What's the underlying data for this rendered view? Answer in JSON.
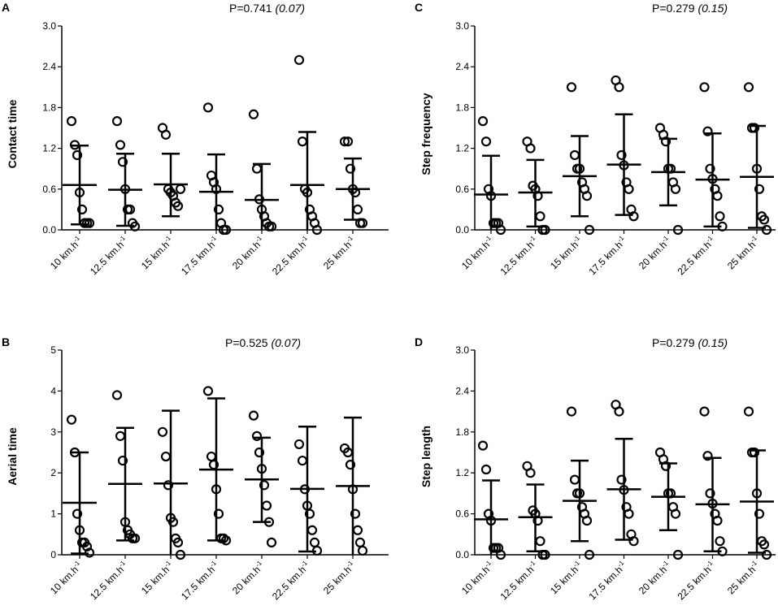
{
  "chart_data": [
    {
      "panel": "A",
      "type": "scatter",
      "title": "P=0.741",
      "title_effect": "(0.07)",
      "xlabel": "",
      "ylabel": "Contact time",
      "ylim": [
        0,
        3.0
      ],
      "yticks": [
        "0.0",
        "0.6",
        "1.2",
        "1.8",
        "2.4",
        "3.0"
      ],
      "categories": [
        "10 km.h",
        "12.5 km.h",
        "15 km.h",
        "17.5 km.h",
        "20 km.h",
        "22.5 km.h",
        "25 km.h"
      ],
      "unit_exponent": "-1",
      "mean": [
        0.66,
        0.59,
        0.67,
        0.56,
        0.44,
        0.66,
        0.6
      ],
      "sd_upper": [
        1.24,
        1.12,
        1.12,
        1.11,
        0.97,
        1.44,
        1.05
      ],
      "sd_lower": [
        0.08,
        0.06,
        0.2,
        0.0,
        0.0,
        0.0,
        0.15
      ],
      "points": [
        [
          1.6,
          1.25,
          1.1,
          0.55,
          0.3,
          0.1,
          0.1,
          0.1
        ],
        [
          1.6,
          1.25,
          1.0,
          0.6,
          0.3,
          0.3,
          0.1,
          0.05
        ],
        [
          1.5,
          1.4,
          0.6,
          0.55,
          0.5,
          0.4,
          0.35,
          0.6
        ],
        [
          1.8,
          0.8,
          0.7,
          0.6,
          0.3,
          0.1,
          0.0,
          0.0
        ],
        [
          1.7,
          0.9,
          0.45,
          0.3,
          0.2,
          0.1,
          0.05,
          0.05
        ],
        [
          2.5,
          1.3,
          0.6,
          0.55,
          0.3,
          0.2,
          0.1,
          0.0
        ],
        [
          1.3,
          1.3,
          0.9,
          0.6,
          0.55,
          0.3,
          0.1,
          0.1
        ]
      ]
    },
    {
      "panel": "C",
      "type": "scatter",
      "title": "P=0.279",
      "title_effect": "(0.15)",
      "xlabel": "",
      "ylabel": "Step frequency",
      "ylim": [
        0,
        3.0
      ],
      "yticks": [
        "0.0",
        "0.6",
        "1.2",
        "1.8",
        "2.4",
        "3.0"
      ],
      "categories": [
        "10 km.h",
        "12.5 km.h",
        "15 km.h",
        "17.5 km.h",
        "20 km.h",
        "22.5 km.h",
        "25 km.h"
      ],
      "unit_exponent": "-1",
      "mean": [
        0.52,
        0.55,
        0.79,
        0.96,
        0.85,
        0.74,
        0.78
      ],
      "sd_upper": [
        1.09,
        1.03,
        1.38,
        1.7,
        1.34,
        1.42,
        1.53
      ],
      "sd_lower": [
        0.0,
        0.05,
        0.2,
        0.22,
        0.36,
        0.05,
        0.03
      ],
      "points": [
        [
          1.6,
          1.3,
          0.6,
          0.5,
          0.1,
          0.1,
          0.1,
          0.0
        ],
        [
          1.3,
          1.2,
          0.65,
          0.6,
          0.5,
          0.2,
          0.0,
          0.0
        ],
        [
          2.1,
          1.1,
          0.9,
          0.9,
          0.7,
          0.6,
          0.5,
          0.0
        ],
        [
          2.2,
          2.1,
          1.1,
          0.95,
          0.7,
          0.6,
          0.3,
          0.2
        ],
        [
          1.5,
          1.4,
          1.3,
          0.9,
          0.9,
          0.7,
          0.6,
          0.0
        ],
        [
          2.1,
          1.45,
          0.9,
          0.75,
          0.6,
          0.5,
          0.2,
          0.05
        ],
        [
          2.1,
          1.5,
          1.5,
          0.9,
          0.6,
          0.2,
          0.15,
          0.0
        ]
      ]
    },
    {
      "panel": "B",
      "type": "scatter",
      "title": "P=0.525",
      "title_effect": "(0.07)",
      "xlabel": "",
      "ylabel": "Aerial time",
      "ylim": [
        0,
        5
      ],
      "yticks": [
        "0",
        "1",
        "2",
        "3",
        "4",
        "5"
      ],
      "categories": [
        "10 km.h",
        "12.5 km.h",
        "15 km.h",
        "17.5 km.h",
        "20 km.h",
        "22.5 km.h",
        "25 km.h"
      ],
      "unit_exponent": "-1",
      "mean": [
        1.27,
        1.73,
        1.74,
        2.08,
        1.84,
        1.61,
        1.68
      ],
      "sd_upper": [
        2.5,
        3.1,
        3.52,
        3.82,
        2.86,
        3.13,
        3.35
      ],
      "sd_lower": [
        0.03,
        0.35,
        0.0,
        0.35,
        0.8,
        0.08,
        0.0
      ],
      "points": [
        [
          3.3,
          2.5,
          1.0,
          0.6,
          0.3,
          0.3,
          0.2,
          0.05
        ],
        [
          3.9,
          2.9,
          2.3,
          0.8,
          0.6,
          0.5,
          0.4,
          0.4
        ],
        [
          3.0,
          2.4,
          1.7,
          0.9,
          0.8,
          0.4,
          0.3,
          0.0
        ],
        [
          4.0,
          2.4,
          2.2,
          1.6,
          1.0,
          0.4,
          0.4,
          0.35
        ],
        [
          3.4,
          2.9,
          2.5,
          2.1,
          1.7,
          1.2,
          0.8,
          0.3
        ],
        [
          2.7,
          2.3,
          1.6,
          1.2,
          1.0,
          0.6,
          0.3,
          0.1
        ],
        [
          2.6,
          2.5,
          2.2,
          1.6,
          1.0,
          0.6,
          0.3,
          0.1
        ]
      ]
    },
    {
      "panel": "D",
      "type": "scatter",
      "title": "P=0.279",
      "title_effect": "(0.15)",
      "xlabel": "",
      "ylabel": "Step length",
      "ylim": [
        0,
        3.0
      ],
      "yticks": [
        "0.0",
        "0.6",
        "1.2",
        "1.8",
        "2.4",
        "3.0"
      ],
      "categories": [
        "10 km.h",
        "12.5 km.h",
        "15 km.h",
        "17.5 km.h",
        "20 km.h",
        "22.5 km.h",
        "25 km.h"
      ],
      "unit_exponent": "-1",
      "mean": [
        0.52,
        0.55,
        0.79,
        0.96,
        0.85,
        0.74,
        0.78
      ],
      "sd_upper": [
        1.09,
        1.03,
        1.38,
        1.7,
        1.34,
        1.42,
        1.53
      ],
      "sd_lower": [
        0.0,
        0.05,
        0.2,
        0.22,
        0.36,
        0.05,
        0.03
      ],
      "points": [
        [
          1.6,
          1.25,
          0.6,
          0.5,
          0.1,
          0.1,
          0.1,
          0.0
        ],
        [
          1.3,
          1.2,
          0.65,
          0.6,
          0.5,
          0.2,
          0.0,
          0.0
        ],
        [
          2.1,
          1.1,
          0.9,
          0.9,
          0.7,
          0.6,
          0.5,
          0.0
        ],
        [
          2.2,
          2.1,
          1.1,
          0.95,
          0.7,
          0.6,
          0.3,
          0.2
        ],
        [
          1.5,
          1.4,
          1.3,
          0.9,
          0.9,
          0.7,
          0.6,
          0.0
        ],
        [
          2.1,
          1.45,
          0.9,
          0.75,
          0.6,
          0.5,
          0.2,
          0.05
        ],
        [
          2.1,
          1.5,
          1.5,
          0.9,
          0.6,
          0.2,
          0.15,
          0.0
        ]
      ]
    }
  ]
}
